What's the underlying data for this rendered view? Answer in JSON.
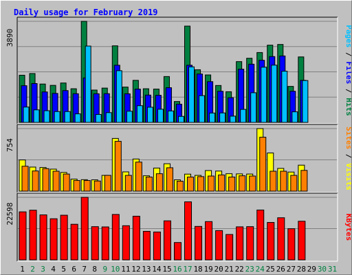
{
  "chart_data": {
    "type": "bar",
    "title": "Daily usage for February 2019",
    "categories": [
      "1",
      "2",
      "3",
      "4",
      "5",
      "6",
      "7",
      "8",
      "9",
      "10",
      "11",
      "12",
      "13",
      "14",
      "15",
      "16",
      "17",
      "18",
      "19",
      "20",
      "21",
      "22",
      "23",
      "24",
      "25",
      "26",
      "27",
      "28",
      "29",
      "30",
      "31"
    ],
    "weekend_days": [
      "2",
      "3",
      "9",
      "10",
      "16",
      "17",
      "23",
      "24",
      "30",
      "31"
    ],
    "panels": [
      {
        "name": "pages-files-hits",
        "ymax_label": "3890",
        "ymax": 3890,
        "right_label": [
          "Pages",
          "Files",
          "Hits"
        ],
        "right_label_colors": [
          "#00c0ff",
          "#0000ff",
          "#008040"
        ],
        "series": [
          {
            "name": "Hits",
            "color": "#008040",
            "values": [
              1815,
              1880,
              1476,
              1425,
              1516,
              1295,
              3890,
              1244,
              1320,
              2947,
              1359,
              1618,
              1295,
              1282,
              1764,
              803,
              3706,
              2026,
              1826,
              1420,
              1179,
              2339,
              2468,
              2688,
              2972,
              2999,
              1385,
              2520,
              0,
              0,
              0
            ]
          },
          {
            "name": "Files",
            "color": "#0000ff",
            "values": [
              1412,
              1495,
              1172,
              1115,
              1224,
              1103,
              1710,
              1102,
              1105,
              2200,
              1100,
              1280,
              1051,
              1043,
              1335,
              700,
              2200,
              1862,
              1568,
              1197,
              949,
              2048,
              2240,
              2390,
              2533,
              2557,
              1198,
              1619,
              0,
              0,
              0
            ]
          },
          {
            "name": "Pages",
            "color": "#00c0ff",
            "values": [
              590,
              482,
              449,
              417,
              417,
              328,
              2937,
              305,
              376,
              1989,
              431,
              643,
              584,
              507,
              440,
              231,
              2137,
              1030,
              360,
              364,
              240,
              500,
              1141,
              2125,
              2203,
              1970,
              407,
              1611,
              0,
              0,
              0
            ]
          }
        ]
      },
      {
        "name": "visits-sites",
        "ymax_label": "754",
        "ymax": 754,
        "right_label": [
          "Sites",
          "Visits"
        ],
        "right_label_colors": [
          "#ff8000",
          "#ffff00"
        ],
        "series": [
          {
            "name": "Visits",
            "color": "#ffff00",
            "values": [
              376,
              290,
              285,
              265,
              225,
              145,
              138,
              136,
              190,
              635,
              232,
              387,
              185,
              278,
              330,
              136,
              205,
              190,
              248,
              242,
              210,
              208,
              206,
              754,
              460,
              274,
              230,
              313,
              0,
              0,
              0
            ]
          },
          {
            "name": "Sites",
            "color": "#ff8000",
            "values": [
              300,
              243,
              271,
              240,
              206,
              128,
              128,
              122,
              190,
              600,
              190,
              350,
              170,
              210,
              282,
              120,
              170,
              175,
              182,
              195,
              170,
              185,
              182,
              650,
              240,
              240,
              190,
              250,
              0,
              0,
              0
            ]
          }
        ]
      },
      {
        "name": "kbytes",
        "ymax_label": "22598",
        "ymax": 22598,
        "right_label": [
          "KBytes"
        ],
        "right_label_colors": [
          "#ff0000"
        ],
        "series": [
          {
            "name": "KBytes",
            "color": "#ff0000",
            "values": [
              17350,
              17945,
              16252,
              14863,
              16130,
              12864,
              22598,
              12000,
              11910,
              16409,
              12341,
              15780,
              10318,
              10072,
              14108,
              6272,
              20963,
              12091,
              13836,
              10580,
              9180,
              11939,
              12006,
              18013,
              13525,
              15219,
              11262,
              13961,
              0,
              0,
              0
            ]
          }
        ]
      }
    ]
  }
}
